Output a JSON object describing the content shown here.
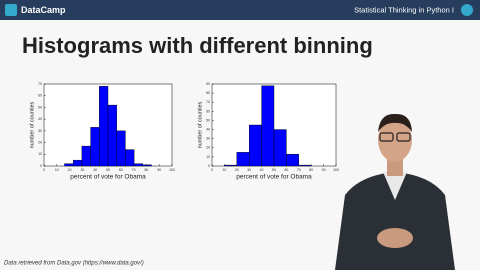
{
  "header": {
    "logo": "DataCamp",
    "course": "Statistical Thinking in Python I"
  },
  "title": "Histograms with different binning",
  "chart_data": [
    {
      "type": "histogram",
      "xlabel": "percent of vote for Obama",
      "ylabel": "number of counties",
      "bins": [
        16,
        22.8,
        29.6,
        36.4,
        43.2,
        50,
        56.8,
        63.6,
        70.4,
        77.2,
        84
      ],
      "values": [
        2,
        5,
        17,
        33,
        68,
        52,
        30,
        14,
        2,
        1
      ],
      "color": "#0000ff",
      "xlim": [
        0,
        100
      ],
      "ylim": [
        0,
        70
      ],
      "xticks": [
        0,
        10,
        20,
        30,
        40,
        50,
        60,
        70,
        80,
        90,
        100
      ],
      "yticks": [
        0,
        10,
        20,
        30,
        40,
        50,
        60,
        70
      ]
    },
    {
      "type": "histogram",
      "xlabel": "percent of vote for Obama",
      "ylabel": "number of counties",
      "bins": [
        0,
        10,
        20,
        30,
        40,
        50,
        60,
        70,
        80,
        90,
        100
      ],
      "values": [
        0,
        1,
        15,
        45,
        88,
        40,
        13,
        1,
        0,
        0
      ],
      "color": "#0000ff",
      "xlim": [
        0,
        100
      ],
      "ylim": [
        0,
        90
      ],
      "xticks": [
        0,
        10,
        20,
        30,
        40,
        50,
        60,
        70,
        80,
        90,
        100
      ],
      "yticks": [
        0,
        10,
        20,
        30,
        40,
        50,
        60,
        70,
        80,
        90
      ]
    }
  ],
  "footer": "Data retrieved from Data.gov (https://www.data.gov/)"
}
